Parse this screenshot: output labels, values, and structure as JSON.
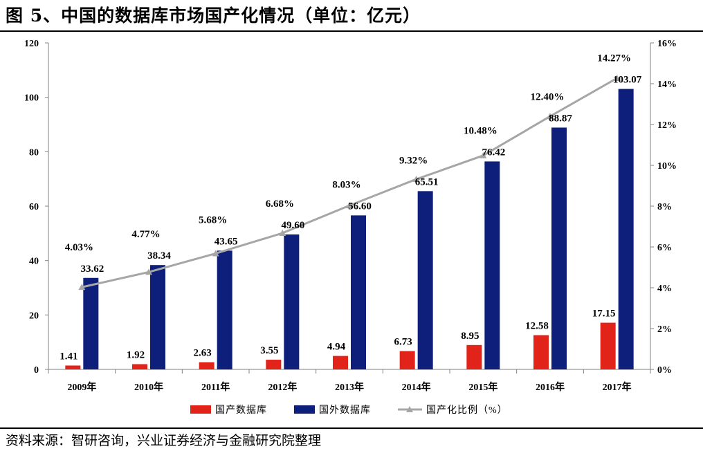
{
  "page": {
    "title": "图 5、中国的数据库市场国产化情况（单位：亿元）",
    "source": "资料来源：智研咨询，兴业证券经济与金融研究院整理"
  },
  "colors": {
    "domestic": "#E2231A",
    "foreign": "#0D1F7A",
    "ratio": "#A6A6A6",
    "axis": "#808080"
  },
  "chart_data": {
    "type": "bar",
    "title": "图 5、中国的数据库市场国产化情况（单位：亿元）",
    "categories": [
      "2009年",
      "2010年",
      "2011年",
      "2012年",
      "2013年",
      "2014年",
      "2015年",
      "2016年",
      "2017年"
    ],
    "series": [
      {
        "name": "国产数据库",
        "type": "bar",
        "axis": "left",
        "values": [
          1.41,
          1.92,
          2.63,
          3.55,
          4.94,
          6.73,
          8.95,
          12.58,
          17.15
        ],
        "labels": [
          "1.41",
          "1.92",
          "2.63",
          "3.55",
          "4.94",
          "6.73",
          "8.95",
          "12.58",
          "17.15"
        ]
      },
      {
        "name": "国外数据库",
        "type": "bar",
        "axis": "left",
        "values": [
          33.62,
          38.34,
          43.65,
          49.6,
          56.6,
          65.51,
          76.42,
          88.87,
          103.07
        ],
        "labels": [
          "33.62",
          "38.34",
          "43.65",
          "49.60",
          "56.60",
          "65.51",
          "76.42",
          "88.87",
          "103.07"
        ]
      },
      {
        "name": "国产化比例（%）",
        "type": "line",
        "axis": "right",
        "values": [
          4.03,
          4.77,
          5.68,
          6.68,
          8.03,
          9.32,
          10.48,
          12.4,
          14.27
        ],
        "labels": [
          "4.03%",
          "4.77%",
          "5.68%",
          "6.68%",
          "8.03%",
          "9.32%",
          "10.48%",
          "12.40%",
          "14.27%"
        ]
      }
    ],
    "y_left": {
      "range": [
        0,
        120
      ],
      "ticks": [
        "0",
        "20",
        "40",
        "60",
        "80",
        "100",
        "120"
      ]
    },
    "y_right": {
      "range": [
        0,
        16
      ],
      "ticks": [
        "0%",
        "2%",
        "4%",
        "6%",
        "8%",
        "10%",
        "12%",
        "14%",
        "16%"
      ]
    },
    "legend": {
      "position": "bottom",
      "labels": [
        "国产数据库",
        "国外数据库",
        "国产化比例（%）"
      ]
    },
    "grid": false
  }
}
